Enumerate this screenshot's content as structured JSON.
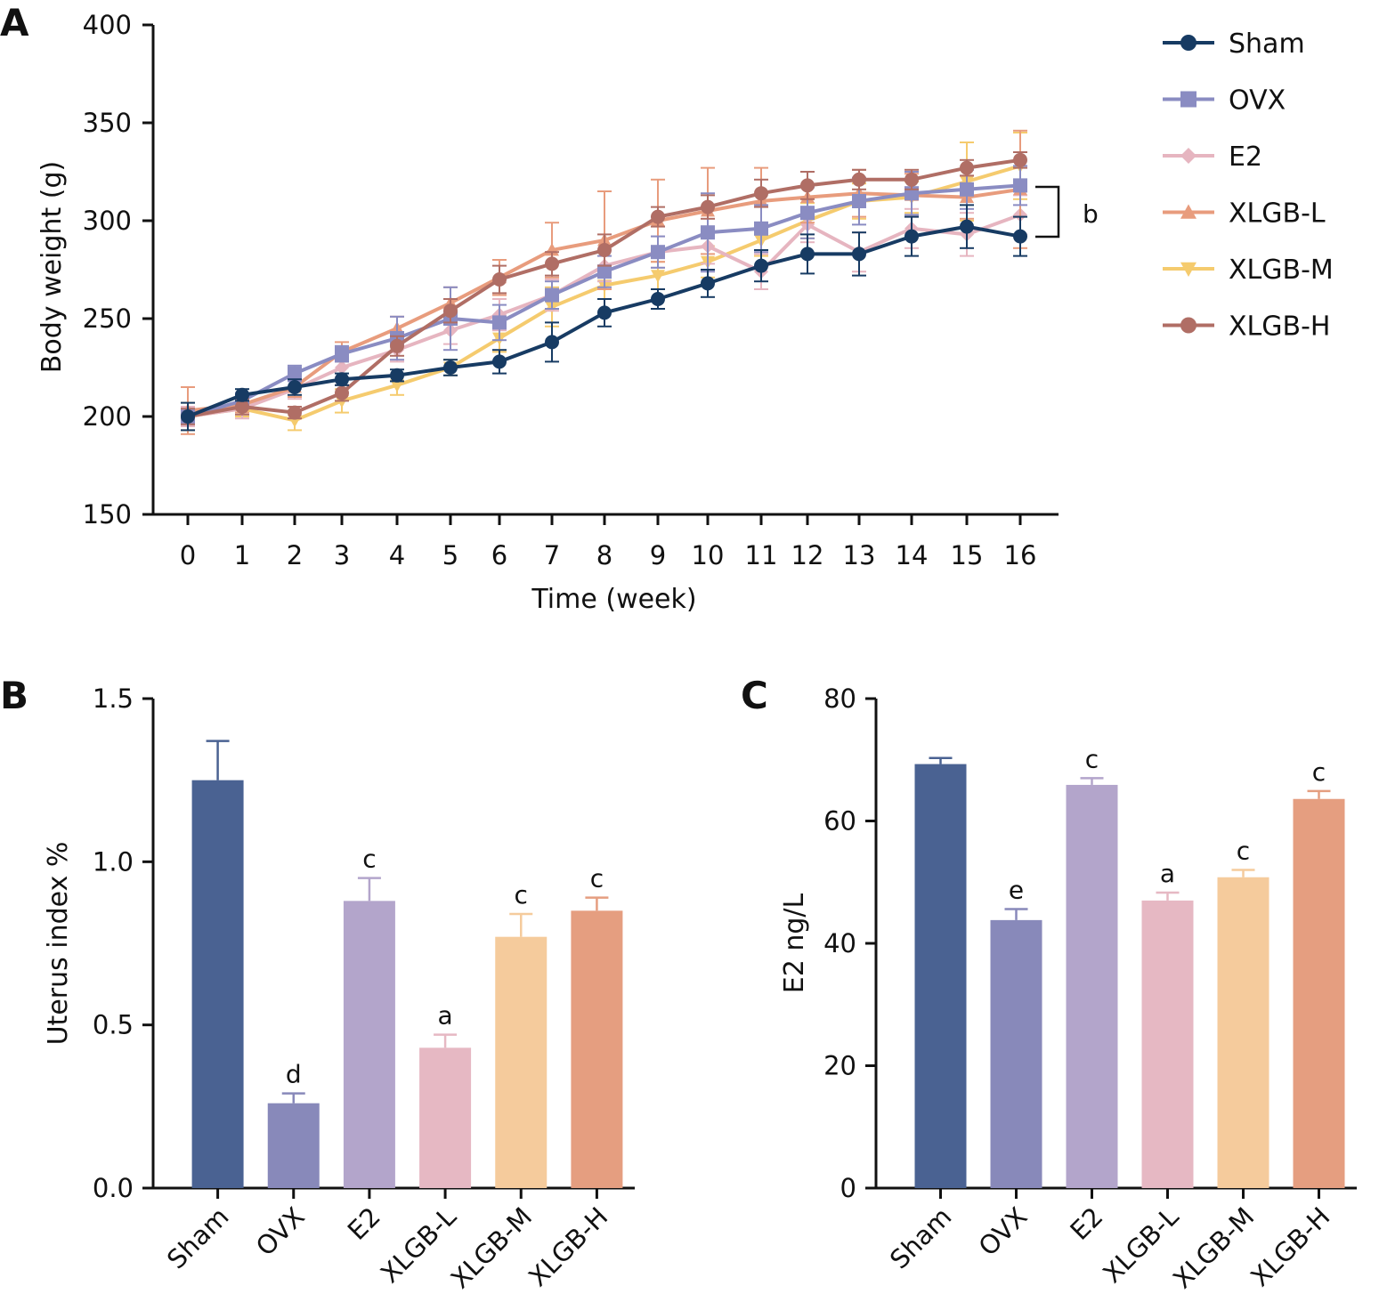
{
  "figure": {
    "panels": [
      "A",
      "B",
      "C"
    ]
  },
  "chart_data": [
    {
      "type": "line",
      "panel": "A",
      "title": "",
      "xlabel": "Time (week)",
      "ylabel": "Body weight (g)",
      "ylim": [
        150,
        400
      ],
      "yticks": [
        150,
        200,
        250,
        300,
        350,
        400
      ],
      "x": [
        0,
        1,
        2,
        3,
        4,
        5,
        6,
        7,
        8,
        9,
        10,
        11,
        12,
        13,
        14,
        15,
        16
      ],
      "x_tick_labels": [
        "0",
        "1",
        "2",
        "3",
        "4",
        "5",
        "6",
        "7",
        "8",
        "9",
        "10",
        "11",
        "12",
        "13",
        "14",
        "15",
        "16"
      ],
      "legend_position": "top-right",
      "annotation": "b",
      "series": [
        {
          "name": "XLGB-M",
          "color": "#F5CB6E",
          "marker": "triangle-down",
          "values": [
            200,
            204,
            198,
            208,
            216,
            225,
            240,
            256,
            267,
            272,
            279,
            290,
            300,
            310,
            312,
            320,
            328
          ],
          "errors": [
            7,
            4,
            5,
            6,
            5,
            4,
            7,
            10,
            7,
            7,
            8,
            8,
            9,
            9,
            8,
            20,
            17
          ]
        },
        {
          "name": "E2",
          "color": "#E6B5C0",
          "marker": "diamond",
          "values": [
            200,
            204,
            214,
            225,
            234,
            244,
            252,
            262,
            277,
            284,
            287,
            274,
            298,
            284,
            296,
            293,
            303
          ],
          "errors": [
            5,
            5,
            5,
            5,
            6,
            7,
            8,
            8,
            8,
            8,
            9,
            9,
            9,
            10,
            10,
            11,
            10
          ]
        },
        {
          "name": "XLGB-L",
          "color": "#E89C7D",
          "marker": "triangle-up",
          "values": [
            203,
            206,
            215,
            233,
            245,
            258,
            271,
            285,
            290,
            300,
            305,
            310,
            312,
            314,
            313,
            312,
            316
          ],
          "errors": [
            12,
            4,
            5,
            5,
            6,
            8,
            9,
            14,
            25,
            21,
            22,
            17,
            13,
            12,
            11,
            11,
            30
          ]
        },
        {
          "name": "OVX",
          "color": "#8A8CC2",
          "marker": "square",
          "values": [
            200,
            208,
            222,
            232,
            240,
            250,
            248,
            262,
            274,
            284,
            294,
            296,
            304,
            310,
            314,
            316,
            318
          ],
          "errors": [
            4,
            4,
            4,
            4,
            11,
            16,
            9,
            7,
            8,
            8,
            20,
            12,
            13,
            12,
            11,
            10,
            10
          ]
        },
        {
          "name": "XLGB-H",
          "color": "#B06E65",
          "marker": "circle",
          "values": [
            200,
            205,
            202,
            212,
            236,
            254,
            270,
            278,
            285,
            302,
            307,
            314,
            318,
            321,
            321,
            327,
            331
          ],
          "errors": [
            4,
            4,
            3,
            4,
            5,
            6,
            7,
            6,
            8,
            5,
            6,
            7,
            7,
            5,
            5,
            4,
            4
          ]
        },
        {
          "name": "Sham",
          "color": "#173B63",
          "marker": "circle",
          "values": [
            200,
            211,
            215,
            219,
            221,
            225,
            228,
            238,
            253,
            260,
            268,
            277,
            283,
            283,
            292,
            297,
            292
          ],
          "errors": [
            7,
            3,
            4,
            3,
            3,
            4,
            6,
            10,
            7,
            5,
            7,
            8,
            10,
            11,
            10,
            11,
            10
          ]
        }
      ],
      "legend_order": [
        "Sham",
        "OVX",
        "E2",
        "XLGB-L",
        "XLGB-M",
        "XLGB-H"
      ]
    },
    {
      "type": "bar",
      "panel": "B",
      "title": "",
      "xlabel": "",
      "ylabel": "Uterus index %",
      "ylim": [
        0.0,
        1.5
      ],
      "yticks": [
        "0.0",
        "0.5",
        "1.0",
        "1.5"
      ],
      "categories": [
        "Sham",
        "OVX",
        "E2",
        "XLGB-L",
        "XLGB-M",
        "XLGB-H"
      ],
      "values": [
        1.25,
        0.26,
        0.88,
        0.43,
        0.77,
        0.85
      ],
      "errors": [
        0.12,
        0.03,
        0.07,
        0.04,
        0.07,
        0.04
      ],
      "significance": [
        "",
        "d",
        "c",
        "a",
        "c",
        "c"
      ],
      "colors": [
        "#4A6292",
        "#8889BA",
        "#B3A5CB",
        "#E6B8C3",
        "#F5CB9C",
        "#E59E80"
      ]
    },
    {
      "type": "bar",
      "panel": "C",
      "title": "",
      "xlabel": "",
      "ylabel": "E2 ng/L",
      "ylim": [
        0,
        80
      ],
      "yticks": [
        "0",
        "20",
        "40",
        "60",
        "80"
      ],
      "categories": [
        "Sham",
        "OVX",
        "E2",
        "XLGB-L",
        "XLGB-M",
        "XLGB-H"
      ],
      "values": [
        69.3,
        43.8,
        65.9,
        47.0,
        50.8,
        63.6
      ],
      "errors": [
        1.0,
        1.8,
        1.1,
        1.3,
        1.2,
        1.3
      ],
      "significance": [
        "",
        "e",
        "c",
        "a",
        "c",
        "c"
      ],
      "colors": [
        "#4A6292",
        "#8889BA",
        "#B3A5CB",
        "#E6B8C3",
        "#F5CB9C",
        "#E59E80"
      ]
    }
  ]
}
